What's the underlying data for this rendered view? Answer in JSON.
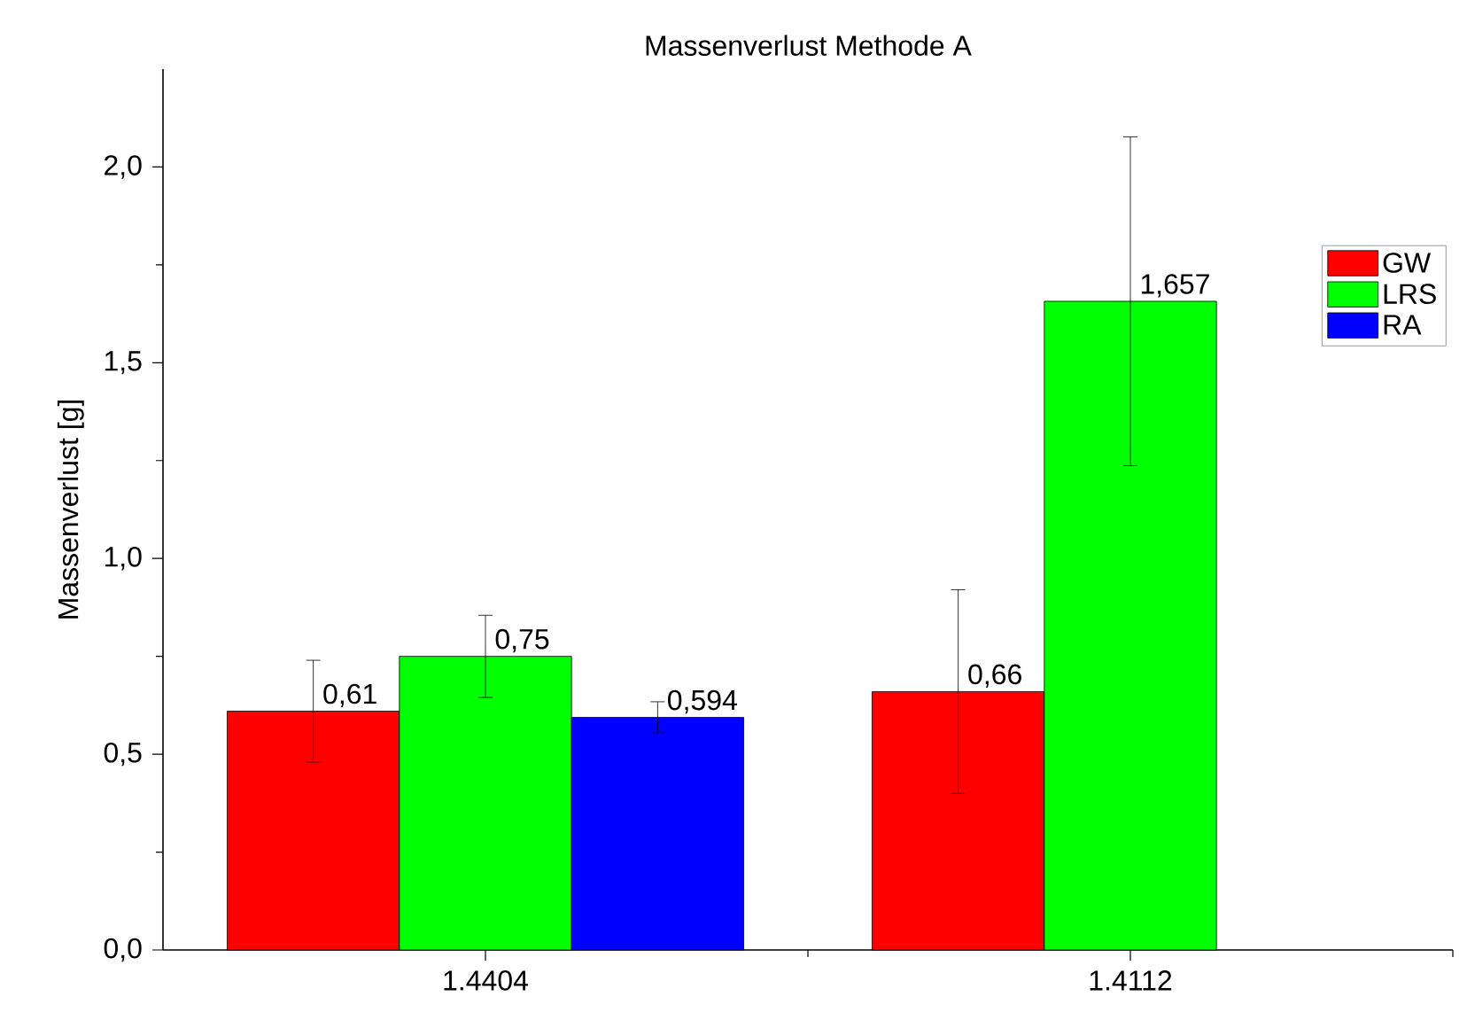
{
  "chart_data": {
    "type": "bar",
    "title": "Massenverlust Methode A",
    "ylabel": "Massenverlust [g]",
    "categories": [
      "1.4404",
      "1.4112"
    ],
    "series": [
      {
        "name": "GW",
        "color": "#ff0000",
        "values": [
          0.61,
          0.66
        ],
        "value_labels": [
          "0,61",
          "0,66"
        ],
        "errors": [
          0.13,
          0.26
        ]
      },
      {
        "name": "LRS",
        "color": "#00ff00",
        "values": [
          0.75,
          1.657
        ],
        "value_labels": [
          "0,75",
          "1,657"
        ],
        "errors": [
          0.105,
          0.42
        ]
      },
      {
        "name": "RA",
        "color": "#0000ff",
        "values": [
          0.594,
          null
        ],
        "value_labels": [
          "0,594",
          null
        ],
        "errors": [
          0.04,
          null
        ]
      }
    ],
    "ylim": [
      0,
      2.25
    ],
    "yticks": [
      {
        "value": 0,
        "label": "0,0"
      },
      {
        "value": 0.5,
        "label": "0,5"
      },
      {
        "value": 1.0,
        "label": "1,0"
      },
      {
        "value": 1.5,
        "label": "1,5"
      },
      {
        "value": 2.0,
        "label": "2,0"
      }
    ],
    "grid": false,
    "legend": "top right"
  }
}
